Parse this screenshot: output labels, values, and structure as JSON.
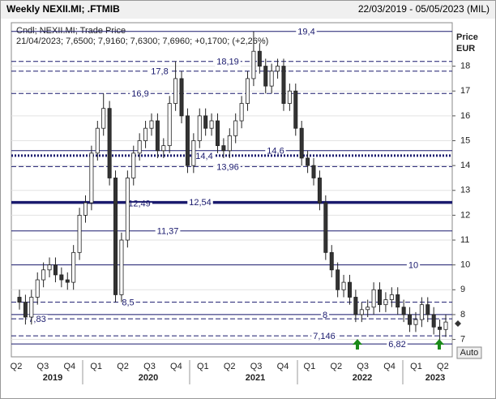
{
  "header": {
    "title": "Weekly NEXII.MI; .FTMIB",
    "range": "22/03/2019 - 05/05/2023 (MIL)"
  },
  "chart_data": {
    "type": "candlestick",
    "legend": {
      "line1": "Cndl; NEXII.MI; Trade Price",
      "line2": "21/04/2023; 7,6500; 7,9160; 7,6300; 7,6960; +0,1700; (+2,26%)"
    },
    "y_axis_title": [
      "Price",
      "EUR"
    ],
    "button": "Auto",
    "ylim": [
      6.3,
      19.75
    ],
    "yticks": [
      7,
      8,
      9,
      10,
      11,
      12,
      13,
      14,
      15,
      16,
      17,
      18
    ],
    "x_axis": {
      "quarters": [
        "Q2",
        "Q3",
        "Q4",
        "Q1",
        "Q2",
        "Q3",
        "Q4",
        "Q1",
        "Q2",
        "Q3",
        "Q4",
        "Q1",
        "Q2",
        "Q3",
        "Q4",
        "Q1",
        "Q2"
      ],
      "years": [
        "2019",
        "2020",
        "2021",
        "2022",
        "2023"
      ]
    },
    "levels": [
      {
        "value": 19.4,
        "label": "19,4",
        "style": "solid"
      },
      {
        "value": 18.19,
        "label": "18,19",
        "style": "dashed"
      },
      {
        "value": 17.8,
        "label": "17,8",
        "style": "dashed"
      },
      {
        "value": 16.9,
        "label": "16,9",
        "style": "dashed"
      },
      {
        "value": 14.6,
        "label": "14,6",
        "style": "solid"
      },
      {
        "value": 14.4,
        "label": "14,4",
        "style": "dotted"
      },
      {
        "value": 13.96,
        "label": "13,96",
        "style": "dashed"
      },
      {
        "value": 12.49,
        "label": "12,49",
        "style": "solid"
      },
      {
        "value": 12.54,
        "label": "12,54",
        "style": "solid"
      },
      {
        "value": 11.37,
        "label": "11,37",
        "style": "solid"
      },
      {
        "value": 10,
        "label": "10",
        "style": "solid"
      },
      {
        "value": 8.5,
        "label": "8,5",
        "style": "dashed"
      },
      {
        "value": 8,
        "label": "8",
        "style": "solid"
      },
      {
        "value": 7.83,
        "label": "7,83",
        "style": "dashed"
      },
      {
        "value": 7.146,
        "label": "7,146",
        "style": "dashed"
      },
      {
        "value": 6.82,
        "label": "6,82",
        "style": "solid"
      }
    ],
    "open": [
      8.7,
      8.5,
      7.9,
      8.7,
      9.4,
      9.8,
      10.0,
      9.6,
      9.4,
      9.3,
      10.5,
      12.0,
      12.5,
      14.5,
      15.5,
      16.3,
      13.5,
      8.8,
      11.0,
      13.5,
      14.5,
      15.0,
      15.5,
      15.8,
      14.6,
      14.8,
      16.5,
      17.5,
      16.0,
      14.0,
      15.0,
      16.0,
      15.5,
      15.8,
      14.8,
      14.6,
      15.2,
      15.8,
      16.5,
      17.5,
      18.6,
      18.0,
      17.2,
      17.8,
      18.0,
      16.5,
      17.0,
      15.5,
      14.3,
      14.0,
      13.5,
      12.5,
      10.5,
      9.8,
      9.0,
      9.3,
      8.7,
      8.0,
      8.2,
      8.3,
      9.0,
      8.4,
      8.6,
      8.8,
      8.3,
      8.0,
      7.6,
      7.8,
      8.4,
      8.0,
      7.5,
      7.4
    ],
    "high": [
      9.0,
      8.8,
      9.0,
      9.7,
      10.1,
      10.3,
      10.3,
      9.9,
      9.7,
      10.8,
      12.3,
      12.8,
      14.8,
      15.8,
      16.9,
      16.6,
      13.8,
      11.3,
      13.8,
      14.8,
      15.3,
      15.8,
      16.1,
      16.1,
      15.1,
      16.8,
      18.2,
      17.8,
      16.3,
      15.3,
      16.3,
      16.3,
      16.1,
      16.1,
      15.1,
      15.5,
      16.1,
      16.8,
      17.8,
      19.4,
      18.9,
      18.3,
      18.1,
      18.3,
      18.3,
      17.3,
      17.3,
      15.8,
      14.6,
      14.3,
      13.8,
      12.8,
      10.8,
      10.1,
      9.6,
      9.6,
      9.0,
      8.5,
      8.6,
      9.3,
      9.3,
      8.9,
      9.1,
      9.1,
      8.6,
      8.3,
      8.1,
      8.7,
      8.7,
      8.3,
      7.8,
      8.0
    ],
    "low": [
      8.2,
      7.6,
      7.6,
      8.4,
      9.1,
      9.5,
      9.3,
      9.1,
      9.0,
      9.0,
      10.2,
      11.7,
      12.2,
      14.2,
      15.2,
      13.2,
      8.5,
      8.5,
      10.7,
      13.2,
      14.2,
      14.7,
      15.2,
      14.3,
      14.3,
      14.5,
      16.2,
      15.7,
      13.7,
      13.7,
      14.7,
      15.2,
      15.2,
      14.5,
      14.3,
      14.3,
      14.9,
      15.5,
      16.2,
      17.2,
      17.7,
      16.9,
      16.9,
      17.5,
      16.2,
      16.2,
      15.2,
      14.0,
      13.7,
      13.2,
      12.2,
      10.2,
      9.5,
      8.7,
      8.7,
      8.4,
      7.7,
      7.7,
      7.9,
      8.0,
      8.1,
      8.1,
      8.3,
      8.0,
      7.7,
      7.3,
      7.3,
      7.5,
      7.7,
      7.2,
      6.82,
      7.1
    ],
    "close": [
      8.5,
      7.9,
      8.7,
      9.4,
      9.8,
      10.0,
      9.6,
      9.4,
      9.3,
      10.5,
      12.0,
      12.5,
      14.5,
      15.5,
      16.3,
      13.5,
      8.8,
      11.0,
      13.5,
      14.5,
      15.0,
      15.5,
      15.8,
      14.6,
      14.8,
      16.5,
      17.5,
      16.0,
      14.0,
      15.0,
      16.0,
      15.5,
      15.8,
      14.8,
      14.6,
      15.2,
      15.8,
      16.5,
      17.5,
      18.6,
      18.0,
      17.2,
      17.8,
      18.0,
      16.5,
      17.0,
      15.5,
      14.3,
      14.0,
      13.5,
      12.5,
      10.5,
      9.8,
      9.0,
      9.3,
      8.7,
      8.0,
      8.2,
      8.3,
      9.0,
      8.4,
      8.6,
      8.8,
      8.3,
      8.0,
      7.6,
      7.8,
      8.4,
      8.0,
      7.5,
      7.4,
      7.7
    ],
    "grid": true
  }
}
